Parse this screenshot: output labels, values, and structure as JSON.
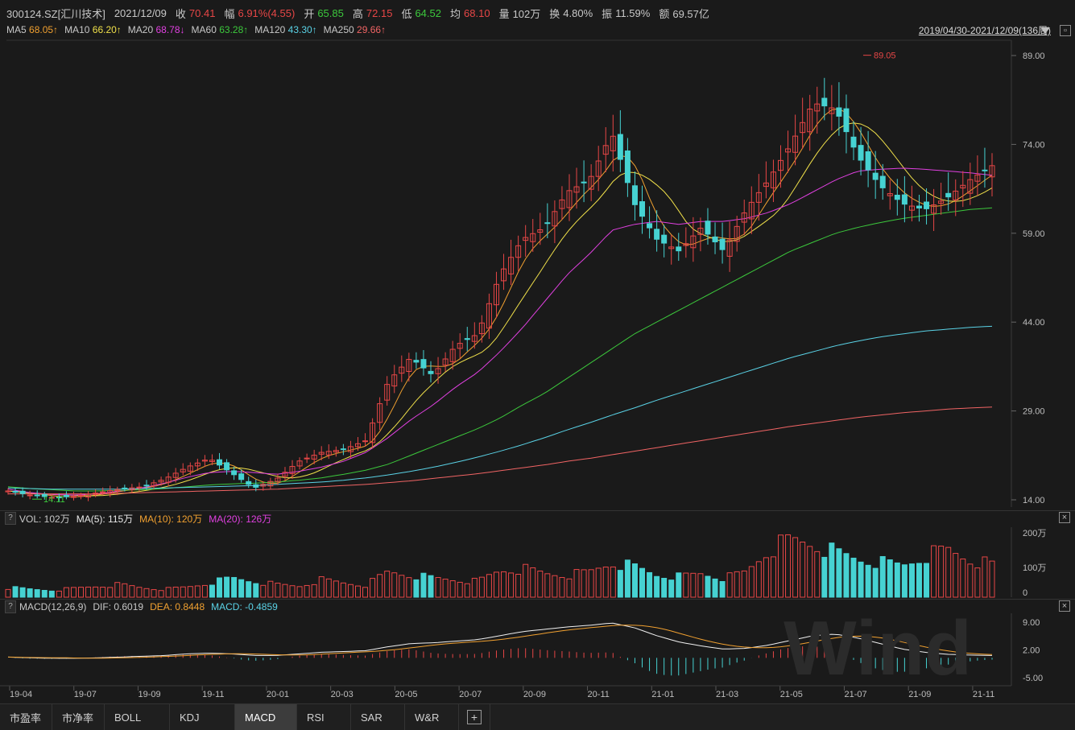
{
  "header": {
    "security": "300124.SZ[汇川技术]",
    "date": "2021/12/09",
    "close_label": "收",
    "close": "70.41",
    "change_label": "幅",
    "change": "6.91%(4.55)",
    "open_label": "开",
    "open": "65.85",
    "high_label": "高",
    "high": "72.15",
    "low_label": "低",
    "low": "64.52",
    "avg_label": "均",
    "avg": "68.10",
    "vol_label": "量",
    "vol": "102万",
    "turnover_label": "换",
    "turnover": "4.80%",
    "amplitude_label": "振",
    "amplitude": "11.59%",
    "amount_label": "额",
    "amount": "69.57亿"
  },
  "ma_legend": [
    {
      "name": "MA5",
      "value": "68.05↑",
      "color": "#f0a030"
    },
    {
      "name": "MA10",
      "value": "66.20↑",
      "color": "#f0e04a"
    },
    {
      "name": "MA20",
      "value": "68.78↓",
      "color": "#e040e0"
    },
    {
      "name": "MA60",
      "value": "63.28↑",
      "color": "#3cc83c"
    },
    {
      "name": "MA120",
      "value": "43.30↑",
      "color": "#5ad2e6"
    },
    {
      "name": "MA250",
      "value": "29.66↑",
      "color": "#f06464"
    }
  ],
  "range_label": "2019/04/30-2021/12/09(136周)",
  "price_axis": [
    "89.00",
    "74.00",
    "59.00",
    "44.00",
    "29.00",
    "14.00"
  ],
  "max_marker": "89.05",
  "min_marker": "14.11",
  "volume_panel": {
    "help": "?",
    "title": "VOL: 102万",
    "ma5": "MA(5): 115万",
    "ma10": "MA(10): 120万",
    "ma20": "MA(20): 126万",
    "axis": [
      "200万",
      "100万",
      "0"
    ]
  },
  "macd_panel": {
    "help": "?",
    "title": "MACD(12,26,9)",
    "dif": "DIF: 0.6019",
    "dea": "DEA: 0.8448",
    "macd": "MACD: -0.4859",
    "axis": [
      "9.00",
      "2.00",
      "-5.00"
    ]
  },
  "watermark": "Wind",
  "time_axis": [
    "19-04",
    "19-07",
    "19-09",
    "19-11",
    "20-01",
    "20-03",
    "20-05",
    "20-07",
    "20-09",
    "20-11",
    "21-01",
    "21-03",
    "21-05",
    "21-07",
    "21-09",
    "21-11"
  ],
  "tabs": [
    {
      "label": "市盈率",
      "active": false
    },
    {
      "label": "市净率",
      "active": false
    },
    {
      "label": "BOLL",
      "active": false
    },
    {
      "label": "KDJ",
      "active": false
    },
    {
      "label": "MACD",
      "active": true
    },
    {
      "label": "RSI",
      "active": false
    },
    {
      "label": "SAR",
      "active": false
    },
    {
      "label": "W&R",
      "active": false
    }
  ],
  "add_tab_icon": "plus-icon",
  "colors": {
    "up": "#e64646",
    "down": "#46d2d2",
    "background": "#1a1a1a"
  },
  "chart_data": {
    "type": "candlestick",
    "period": "weekly",
    "ylim": [
      14,
      89
    ],
    "close_path": [
      15.5,
      14.8,
      14.4,
      14.6,
      15.2,
      15.8,
      16.2,
      17.5,
      19.5,
      21,
      18.5,
      16,
      17.5,
      20.5,
      22,
      22.5,
      24,
      34,
      38,
      35,
      40,
      42,
      52,
      58,
      60,
      66,
      68,
      76,
      64,
      58,
      56,
      60,
      56,
      63,
      68,
      74,
      81,
      80,
      72,
      67,
      64,
      63,
      65,
      68,
      70.41
    ],
    "series": [
      {
        "name": "MA20",
        "values": [
          15.8,
          15.2,
          14.9,
          14.8,
          15.0,
          15.5,
          16.0,
          16.8,
          17.8,
          18.6,
          18.8,
          18.6,
          18.3,
          18.8,
          19.5,
          20.5,
          22.0,
          24.5,
          27.5,
          30.0,
          33.0,
          35.5,
          39.0,
          43.0,
          47.5,
          52.0,
          55.5,
          59.5,
          60.5,
          61.0,
          60.5,
          61.0,
          61.0,
          61.5,
          62.5,
          64.0,
          66.0,
          68.0,
          69.5,
          69.8,
          70.0,
          69.8,
          69.5,
          69.2,
          68.78
        ]
      },
      {
        "name": "MA60",
        "values": [
          16.2,
          15.9,
          15.7,
          15.5,
          15.5,
          15.6,
          15.7,
          15.9,
          16.2,
          16.5,
          16.7,
          16.8,
          17.0,
          17.3,
          17.7,
          18.3,
          19.0,
          20.0,
          21.5,
          23.0,
          24.5,
          26.0,
          27.8,
          30.0,
          32.0,
          34.5,
          37.0,
          39.5,
          42.0,
          44.0,
          46.0,
          48.0,
          50.0,
          52.0,
          54.0,
          56.0,
          57.5,
          59.0,
          60.0,
          60.8,
          61.5,
          62.0,
          62.5,
          63.0,
          63.28
        ]
      },
      {
        "name": "MA120",
        "values": [
          16.0,
          15.9,
          15.8,
          15.8,
          15.8,
          15.8,
          15.9,
          16.0,
          16.1,
          16.2,
          16.3,
          16.4,
          16.6,
          16.8,
          17.0,
          17.3,
          17.7,
          18.2,
          18.8,
          19.5,
          20.3,
          21.2,
          22.2,
          23.3,
          24.5,
          25.8,
          27.0,
          28.3,
          29.5,
          30.8,
          32.0,
          33.2,
          34.4,
          35.6,
          36.8,
          38.0,
          39.0,
          40.0,
          40.8,
          41.5,
          42.0,
          42.5,
          42.8,
          43.1,
          43.3
        ]
      },
      {
        "name": "MA250",
        "values": [
          15.0,
          15.0,
          15.0,
          15.0,
          15.0,
          15.1,
          15.2,
          15.3,
          15.4,
          15.5,
          15.6,
          15.7,
          15.8,
          16.0,
          16.2,
          16.4,
          16.6,
          16.9,
          17.2,
          17.6,
          18.0,
          18.4,
          18.9,
          19.4,
          19.9,
          20.5,
          21.0,
          21.6,
          22.2,
          22.8,
          23.4,
          24.0,
          24.6,
          25.2,
          25.8,
          26.4,
          26.9,
          27.4,
          27.9,
          28.3,
          28.7,
          29.0,
          29.3,
          29.5,
          29.66
        ]
      }
    ],
    "volume_series": [
      30,
      25,
      22,
      28,
      35,
      40,
      30,
      25,
      32,
      45,
      60,
      50,
      40,
      35,
      55,
      45,
      38,
      80,
      70,
      60,
      55,
      50,
      85,
      90,
      75,
      70,
      80,
      110,
      95,
      70,
      65,
      75,
      60,
      80,
      150,
      180,
      170,
      140,
      120,
      110,
      100,
      130,
      150,
      120,
      102
    ],
    "macd_dif": [
      0.2,
      0.0,
      -0.1,
      -0.1,
      0.0,
      0.2,
      0.4,
      0.6,
      1.0,
      1.2,
      1.0,
      0.6,
      0.6,
      1.0,
      1.4,
      1.6,
      1.8,
      2.8,
      3.6,
      3.8,
      4.2,
      4.6,
      5.6,
      6.6,
      7.2,
      7.8,
      8.2,
      8.8,
      7.6,
      5.6,
      4.0,
      3.0,
      2.2,
      2.4,
      3.2,
      4.4,
      5.6,
      6.0,
      5.0,
      3.6,
      2.2,
      1.4,
      0.9,
      0.7,
      0.6
    ]
  }
}
